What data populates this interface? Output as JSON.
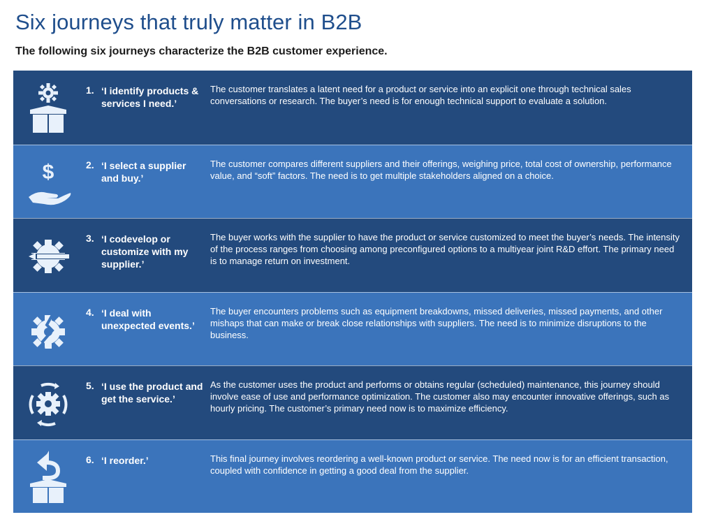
{
  "header": {
    "title": "Six journeys that truly matter in B2B",
    "subtitle": "The following six journeys characterize the B2B customer experience."
  },
  "journeys": [
    {
      "number": "1.",
      "label": "‘I identify products & services I need.’",
      "description": "The customer translates a latent need for a product or service into an explicit one through technical sales conversations or research. The buyer’s need is for enough technical support to evaluate a solution.",
      "icon": "gear-box-icon"
    },
    {
      "number": "2.",
      "label": "‘I select a supplier and buy.’",
      "description": "The customer compares different suppliers and their offerings, weighing price, total cost of ownership, performance value, and “soft” factors. The need is to get multiple stakeholders aligned on a choice.",
      "icon": "dollar-hand-icon"
    },
    {
      "number": "3.",
      "label": "‘I codevelop or customize with my supplier.’",
      "description": "The buyer works with the supplier to have the product or service customized to meet the buyer’s needs. The intensity of the process ranges from choosing among preconfigured options to a multiyear joint R&D effort. The primary need is to manage return on investment.",
      "icon": "gear-pencil-icon"
    },
    {
      "number": "4.",
      "label": "‘I deal with unexpected events.’",
      "description": "The buyer encounters problems such as equipment breakdowns, missed deliveries, missed payments, and other mishaps that can make or break close relationships with suppliers. The need is to minimize disruptions to the business.",
      "icon": "broken-gear-icon"
    },
    {
      "number": "5.",
      "label": "‘I use the product and get the service.’",
      "description": "As the customer uses the product and performs or obtains regular (scheduled) maintenance, this journey should involve ease of use and performance optimization. The customer also may encounter innovative offerings, such as hourly pricing. The customer’s primary need now is to maximize efficiency.",
      "icon": "gear-cycle-icon"
    },
    {
      "number": "6.",
      "label": "‘I reorder.’",
      "description": "This final journey involves reordering a well-known product or service. The need now is for an efficient transaction, coupled with confidence in getting a good deal from the supplier.",
      "icon": "reorder-box-icon"
    }
  ],
  "colors": {
    "title": "#1f4e8c",
    "row_dark": "#234a7d",
    "row_light": "#3b74bb",
    "icon": "#e8f1fb"
  }
}
